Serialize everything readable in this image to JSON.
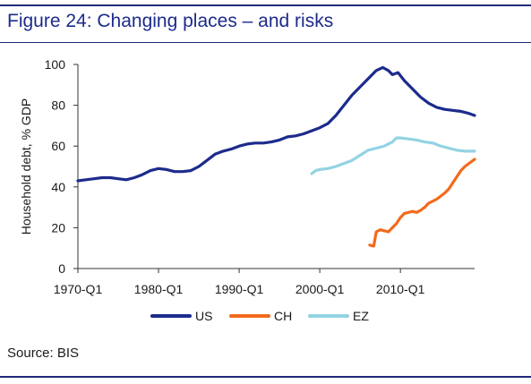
{
  "figure_title": "Figure 24: Changing places – and risks",
  "source_note": "Source: BIS",
  "chart_data": {
    "type": "line",
    "title": "",
    "xlabel": "",
    "ylabel": "Household debt, % GDP",
    "ylim": [
      0,
      100
    ],
    "yticks": [
      0,
      20,
      40,
      60,
      80,
      100
    ],
    "xlim": [
      1970.0,
      2019.2
    ],
    "xticks": [
      {
        "x": 1970,
        "label": "1970-Q1"
      },
      {
        "x": 1980,
        "label": "1980-Q1"
      },
      {
        "x": 1990,
        "label": "1990-Q1"
      },
      {
        "x": 2000,
        "label": "2000-Q1"
      },
      {
        "x": 2010,
        "label": "2010-Q1"
      }
    ],
    "grid": false,
    "legend_position": "bottom",
    "series": [
      {
        "name": "US",
        "color": "#1c2b8c",
        "points": [
          [
            1970.0,
            43
          ],
          [
            1971.0,
            43.5
          ],
          [
            1972.0,
            44
          ],
          [
            1973.0,
            44.5
          ],
          [
            1974.0,
            44.5
          ],
          [
            1975.0,
            44
          ],
          [
            1976.0,
            43.5
          ],
          [
            1977.0,
            44.5
          ],
          [
            1978.0,
            46
          ],
          [
            1979.0,
            48
          ],
          [
            1980.0,
            49
          ],
          [
            1981.0,
            48.5
          ],
          [
            1982.0,
            47.5
          ],
          [
            1983.0,
            47.5
          ],
          [
            1984.0,
            48
          ],
          [
            1985.0,
            50
          ],
          [
            1986.0,
            53
          ],
          [
            1987.0,
            56
          ],
          [
            1988.0,
            57.5
          ],
          [
            1989.0,
            58.5
          ],
          [
            1990.0,
            60
          ],
          [
            1991.0,
            61
          ],
          [
            1992.0,
            61.5
          ],
          [
            1993.0,
            61.5
          ],
          [
            1994.0,
            62
          ],
          [
            1995.0,
            63
          ],
          [
            1996.0,
            64.5
          ],
          [
            1997.0,
            65
          ],
          [
            1998.0,
            66
          ],
          [
            1999.0,
            67.5
          ],
          [
            2000.0,
            69
          ],
          [
            2001.0,
            71
          ],
          [
            2002.0,
            75
          ],
          [
            2003.0,
            80
          ],
          [
            2004.0,
            85
          ],
          [
            2005.0,
            89
          ],
          [
            2006.0,
            93
          ],
          [
            2007.0,
            97
          ],
          [
            2007.8,
            98.5
          ],
          [
            2008.5,
            97
          ],
          [
            2009.0,
            95
          ],
          [
            2009.7,
            96
          ],
          [
            2010.5,
            92
          ],
          [
            2011.5,
            88
          ],
          [
            2012.5,
            84
          ],
          [
            2013.5,
            81
          ],
          [
            2014.5,
            79
          ],
          [
            2015.5,
            78
          ],
          [
            2016.5,
            77.5
          ],
          [
            2017.5,
            77
          ],
          [
            2018.5,
            76
          ],
          [
            2019.2,
            75
          ]
        ]
      },
      {
        "name": "CH",
        "color": "#f26a1b",
        "points": [
          [
            2006.2,
            11.5
          ],
          [
            2006.7,
            11
          ],
          [
            2007.0,
            18
          ],
          [
            2007.5,
            19
          ],
          [
            2008.0,
            18.5
          ],
          [
            2008.5,
            18
          ],
          [
            2009.0,
            20
          ],
          [
            2009.5,
            22
          ],
          [
            2010.0,
            25
          ],
          [
            2010.5,
            27
          ],
          [
            2011.0,
            27.5
          ],
          [
            2011.5,
            28
          ],
          [
            2012.0,
            27.5
          ],
          [
            2012.5,
            28.5
          ],
          [
            2013.0,
            30
          ],
          [
            2013.5,
            32
          ],
          [
            2014.0,
            33
          ],
          [
            2014.5,
            34
          ],
          [
            2015.0,
            35.5
          ],
          [
            2015.5,
            37
          ],
          [
            2016.0,
            39
          ],
          [
            2016.5,
            42
          ],
          [
            2017.0,
            45
          ],
          [
            2017.5,
            48
          ],
          [
            2018.0,
            50
          ],
          [
            2018.5,
            51.5
          ],
          [
            2019.2,
            53.5
          ]
        ]
      },
      {
        "name": "EZ",
        "color": "#93d3e3",
        "points": [
          [
            1999.0,
            46.5
          ],
          [
            1999.5,
            48
          ],
          [
            2000.0,
            48.5
          ],
          [
            2001.0,
            49
          ],
          [
            2002.0,
            50
          ],
          [
            2003.0,
            51.5
          ],
          [
            2004.0,
            53
          ],
          [
            2005.0,
            55.5
          ],
          [
            2006.0,
            58
          ],
          [
            2007.0,
            59
          ],
          [
            2008.0,
            60
          ],
          [
            2009.0,
            62
          ],
          [
            2009.5,
            64
          ],
          [
            2010.0,
            64
          ],
          [
            2011.0,
            63.5
          ],
          [
            2012.0,
            63
          ],
          [
            2013.0,
            62
          ],
          [
            2014.0,
            61.5
          ],
          [
            2015.0,
            60
          ],
          [
            2016.0,
            59
          ],
          [
            2017.0,
            58
          ],
          [
            2018.0,
            57.5
          ],
          [
            2019.2,
            57.5
          ]
        ]
      }
    ]
  }
}
